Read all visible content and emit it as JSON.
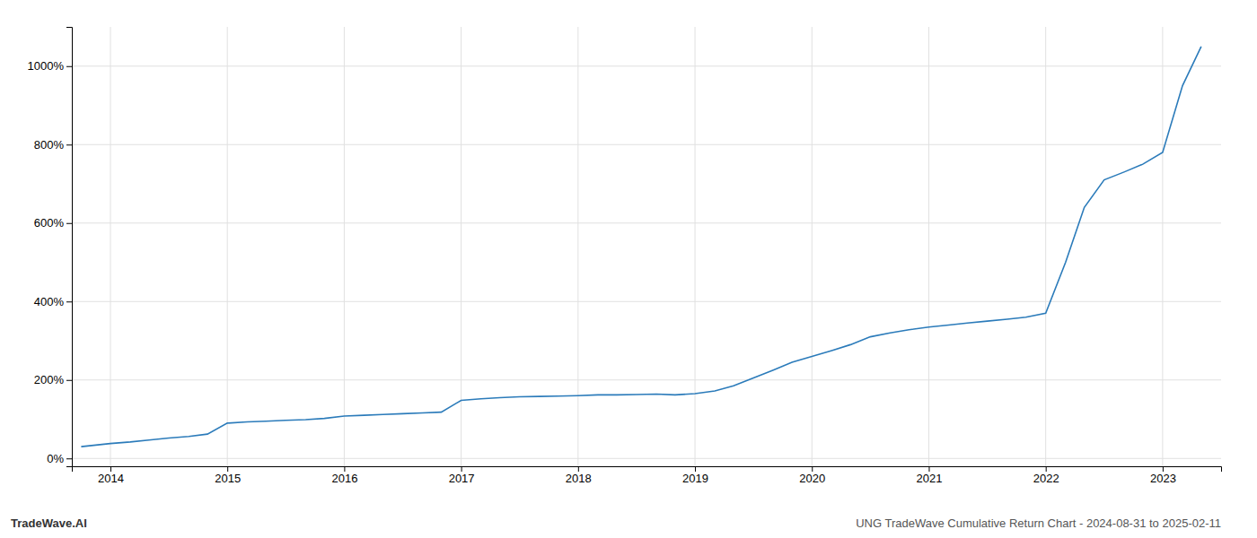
{
  "chart_data": {
    "type": "line",
    "title": "UNG TradeWave Cumulative Return Chart - 2024-08-31 to 2025-02-11",
    "annotations": [
      "TradeWave.AI"
    ],
    "color": "#2b7bba",
    "x": [
      2013.75,
      2014.0,
      2014.17,
      2014.33,
      2014.5,
      2014.67,
      2014.83,
      2015.0,
      2015.17,
      2015.33,
      2015.5,
      2015.67,
      2015.83,
      2016.0,
      2016.17,
      2016.33,
      2016.5,
      2016.67,
      2016.83,
      2017.0,
      2017.17,
      2017.33,
      2017.5,
      2017.67,
      2017.83,
      2018.0,
      2018.17,
      2018.33,
      2018.5,
      2018.67,
      2018.83,
      2019.0,
      2019.17,
      2019.33,
      2019.5,
      2019.67,
      2019.83,
      2020.0,
      2020.17,
      2020.33,
      2020.5,
      2020.67,
      2020.83,
      2021.0,
      2021.17,
      2021.33,
      2021.5,
      2021.67,
      2021.83,
      2022.0,
      2022.17,
      2022.33,
      2022.5,
      2022.67,
      2022.83,
      2023.0,
      2023.17,
      2023.33
    ],
    "values": [
      30,
      38,
      42,
      47,
      52,
      56,
      62,
      90,
      93,
      95,
      97,
      99,
      102,
      108,
      110,
      112,
      114,
      116,
      118,
      148,
      152,
      155,
      157,
      158,
      159,
      160,
      162,
      162,
      163,
      164,
      162,
      165,
      172,
      185,
      205,
      225,
      245,
      260,
      275,
      290,
      310,
      320,
      328,
      335,
      340,
      345,
      350,
      355,
      360,
      370,
      500,
      640,
      710,
      730,
      750,
      780,
      950,
      1050
    ],
    "xlim": [
      2013.67,
      2023.5
    ],
    "xticks": [
      2014,
      2015,
      2016,
      2017,
      2018,
      2019,
      2020,
      2021,
      2022,
      2023
    ],
    "ylim": [
      -20,
      1100
    ],
    "yticks": [
      {
        "value": 0,
        "label": "0%"
      },
      {
        "value": 200,
        "label": "200%"
      },
      {
        "value": 400,
        "label": "400%"
      },
      {
        "value": 600,
        "label": "600%"
      },
      {
        "value": 800,
        "label": "800%"
      },
      {
        "value": 1000,
        "label": "1000%"
      }
    ],
    "grid": true
  }
}
